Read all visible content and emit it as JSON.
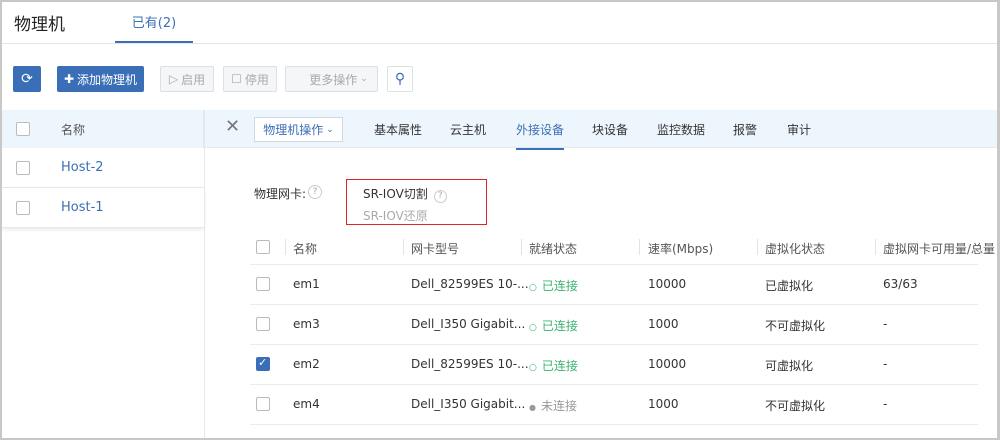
{
  "header": {
    "title": "物理机",
    "tab": "已有(2)"
  },
  "toolbar": {
    "add": "添加物理机",
    "enable": "启用",
    "disable": "停用",
    "more": "更多操作"
  },
  "list": {
    "header": "名称",
    "hosts": [
      "Host-2",
      "Host-1"
    ]
  },
  "detail": {
    "ops": "物理机操作",
    "tabs": [
      "基本属性",
      "云主机",
      "外接设备",
      "块设备",
      "监控数据",
      "报警",
      "审计"
    ],
    "active_tab": "外接设备",
    "nic_label": "物理网卡:",
    "menu": [
      "SR-IOV切割",
      "SR-IOV还原"
    ],
    "columns": [
      "名称",
      "网卡型号",
      "就绪状态",
      "速率(Mbps)",
      "虚拟化状态",
      "虚拟网卡可用量/总量"
    ],
    "rows": [
      {
        "name": "em1",
        "model": "Dell_82599ES 10-...",
        "status": "已连接",
        "speed": "10000",
        "virt": "已虚拟化",
        "avail": "63/63",
        "checked": false,
        "connected": true
      },
      {
        "name": "em3",
        "model": "Dell_I350 Gigabit...",
        "status": "已连接",
        "speed": "1000",
        "virt": "不可虚拟化",
        "avail": "-",
        "checked": false,
        "connected": true
      },
      {
        "name": "em2",
        "model": "Dell_82599ES 10-...",
        "status": "已连接",
        "speed": "10000",
        "virt": "可虚拟化",
        "avail": "-",
        "checked": true,
        "connected": true
      },
      {
        "name": "em4",
        "model": "Dell_I350 Gigabit...",
        "status": "未连接",
        "speed": "1000",
        "virt": "不可虚拟化",
        "avail": "-",
        "checked": false,
        "connected": false
      }
    ]
  },
  "colors": {
    "accent": "#3a6fb8",
    "connected": "#3cb371",
    "highlight": "#e0242b"
  }
}
